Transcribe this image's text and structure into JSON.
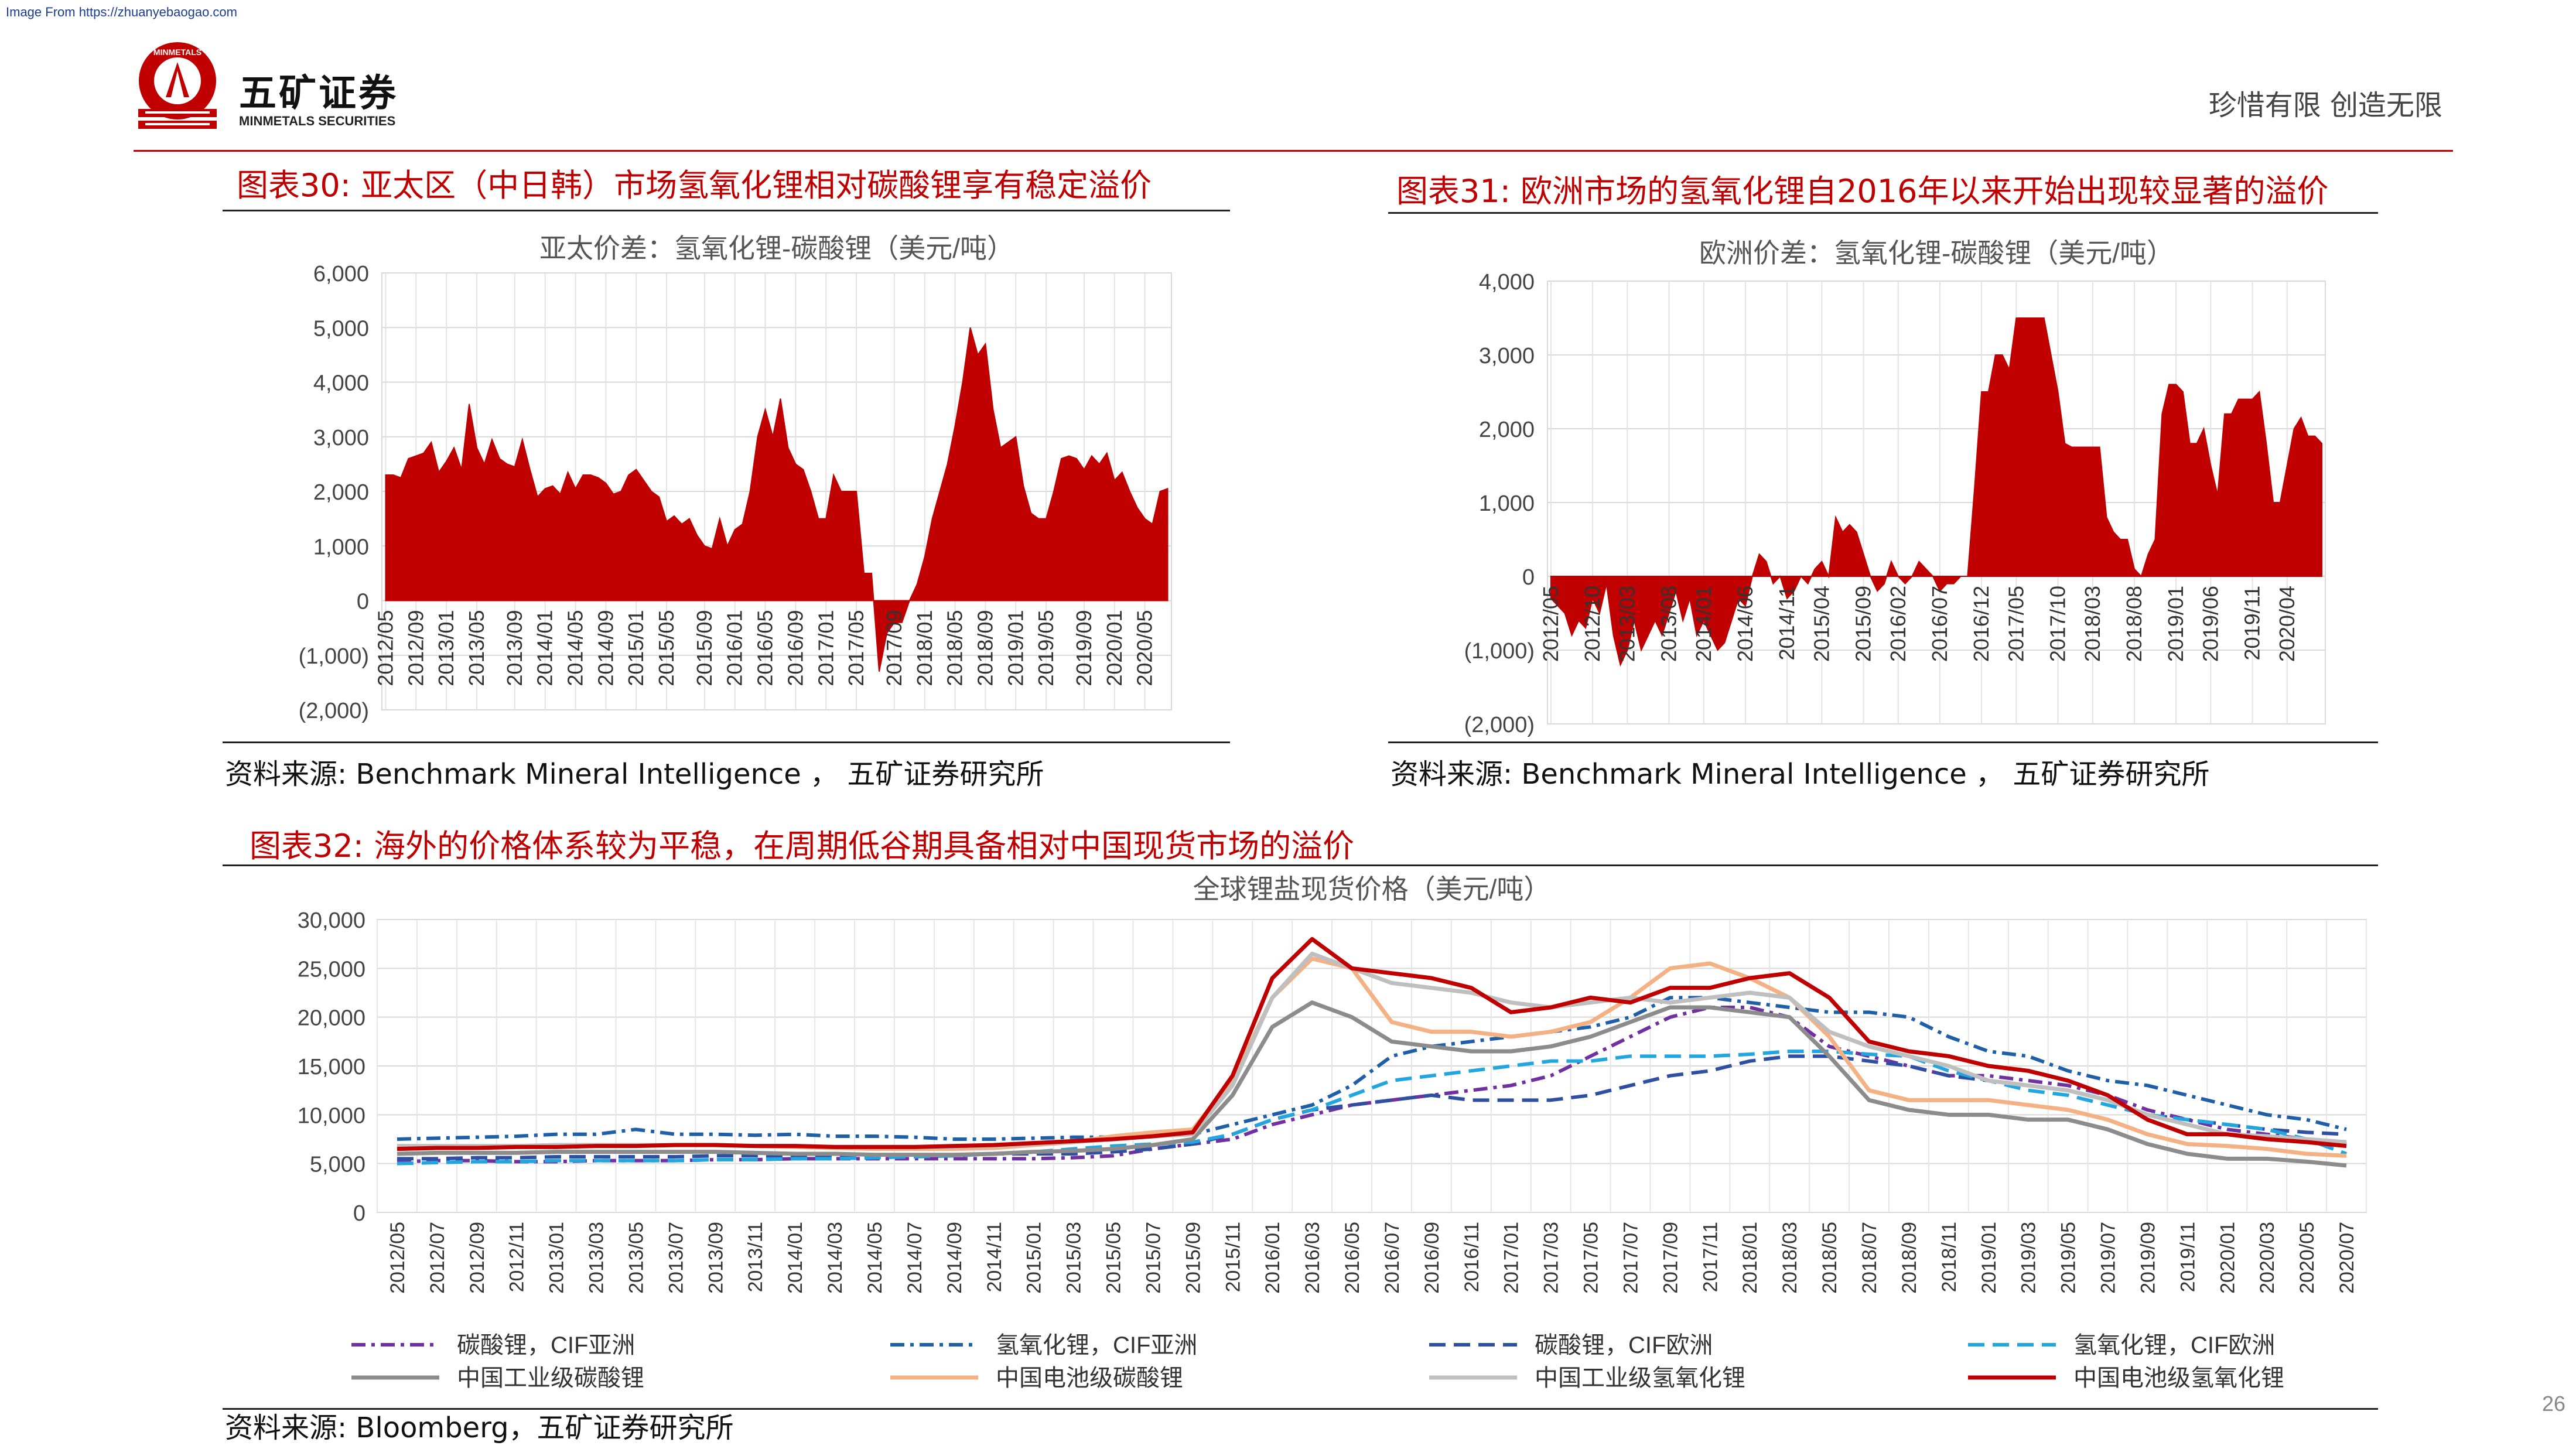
{
  "header": {
    "source_note": "Image From https://zhuanyebaogao.com",
    "company_cn": "五矿证券",
    "company_en": "MINMETALS SECURITIES",
    "logo_text": "MINMETALS",
    "slogan": "珍惜有限 创造无限",
    "accent_color": "#c00000"
  },
  "page_number": "26",
  "figures": {
    "fig30": {
      "title": "图表30: 亚太区（中日韩）市场氢氧化锂相对碳酸锂享有稳定溢价",
      "source": "资料来源: Benchmark Mineral Intelligence ， 五矿证券研究所"
    },
    "fig31": {
      "title": "图表31: 欧洲市场的氢氧化锂自2016年以来开始出现较显著的溢价",
      "source": "资料来源: Benchmark Mineral Intelligence ， 五矿证券研究所"
    },
    "fig32": {
      "title": "图表32: 海外的价格体系较为平稳，在周期低谷期具备相对中国现货市场的溢价",
      "source": "资料来源: Bloomberg，五矿证券研究所"
    }
  },
  "chart_data": [
    {
      "id": "fig30",
      "type": "area",
      "title": "亚太价差：氢氧化锂-碳酸锂（美元/吨）",
      "color": "#c00000",
      "ylim": [
        -2000,
        6000
      ],
      "yticks": [
        "6,000",
        "5,000",
        "4,000",
        "3,000",
        "2,000",
        "1,000",
        "0",
        "(1,000)",
        "(2,000)"
      ],
      "yticks_values": [
        6000,
        5000,
        4000,
        3000,
        2000,
        1000,
        0,
        -1000,
        -2000
      ],
      "xticks": [
        "2012/05",
        "2012/09",
        "2013/01",
        "2013/05",
        "2013/09",
        "2014/01",
        "2014/05",
        "2014/09",
        "2015/01",
        "2015/05",
        "2015/09",
        "2016/01",
        "2016/05",
        "2016/09",
        "2017/01",
        "2017/05",
        "2017/09",
        "2018/01",
        "2018/05",
        "2018/09",
        "2019/01",
        "2019/05",
        "2019/09",
        "2020/01",
        "2020/05"
      ],
      "grid": true,
      "values": [
        2300,
        2300,
        2250,
        2600,
        2650,
        2700,
        2900,
        2350,
        2550,
        2800,
        2400,
        3600,
        2800,
        2500,
        2950,
        2600,
        2500,
        2450,
        2950,
        2400,
        1900,
        2050,
        2100,
        1950,
        2350,
        2050,
        2300,
        2300,
        2250,
        2150,
        1950,
        2000,
        2300,
        2400,
        2200,
        2000,
        1900,
        1450,
        1550,
        1400,
        1500,
        1200,
        1000,
        950,
        1500,
        1000,
        1300,
        1400,
        2000,
        3000,
        3500,
        3000,
        3700,
        2800,
        2500,
        2400,
        2000,
        1500,
        1500,
        2300,
        2000,
        2000,
        2000,
        500,
        500,
        -1300,
        -600,
        -400,
        -400,
        0,
        300,
        800,
        1500,
        2000,
        2500,
        3200,
        4000,
        5000,
        4500,
        4700,
        3500,
        2800,
        2900,
        3000,
        2100,
        1600,
        1500,
        1500,
        2000,
        2600,
        2650,
        2600,
        2400,
        2650,
        2500,
        2700,
        2200,
        2350,
        2000,
        1700,
        1500,
        1400,
        2000,
        2050
      ]
    },
    {
      "id": "fig31",
      "type": "area",
      "title": "欧洲价差：氢氧化锂-碳酸锂（美元/吨）",
      "color": "#c00000",
      "ylim": [
        -2000,
        4000
      ],
      "yticks": [
        "4,000",
        "3,000",
        "2,000",
        "1,000",
        "0",
        "(1,000)",
        "(2,000)"
      ],
      "yticks_values": [
        4000,
        3000,
        2000,
        1000,
        0,
        -1000,
        -2000
      ],
      "xticks": [
        "2012/05",
        "2012/10",
        "2013/03",
        "2013/08",
        "2014/01",
        "2014/06",
        "2014/11",
        "2015/04",
        "2015/09",
        "2016/02",
        "2016/07",
        "2016/12",
        "2017/05",
        "2017/10",
        "2018/03",
        "2018/08",
        "2019/01",
        "2019/06",
        "2019/11",
        "2020/04"
      ],
      "grid": true,
      "values": [
        -300,
        -400,
        -500,
        -800,
        -600,
        -700,
        -300,
        -500,
        -100,
        -800,
        -1200,
        -1000,
        -600,
        -1000,
        -800,
        -600,
        -800,
        -500,
        -200,
        -600,
        -300,
        -800,
        -600,
        -800,
        -1000,
        -900,
        -600,
        -300,
        -400,
        0,
        300,
        200,
        -100,
        0,
        -300,
        -200,
        0,
        -100,
        100,
        200,
        0,
        800,
        600,
        700,
        600,
        300,
        0,
        -200,
        -100,
        200,
        0,
        -100,
        0,
        200,
        100,
        0,
        -200,
        -100,
        -100,
        0,
        0,
        1200,
        2500,
        2500,
        3000,
        3000,
        2800,
        3500,
        3500,
        3500,
        3500,
        3500,
        3000,
        2500,
        1800,
        1750,
        1750,
        1750,
        1750,
        1750,
        800,
        600,
        500,
        500,
        100,
        0,
        300,
        500,
        2200,
        2600,
        2600,
        2500,
        1800,
        1800,
        2000,
        1500,
        1100,
        2200,
        2200,
        2400,
        2400,
        2400,
        2500,
        1800,
        1000,
        1000,
        1500,
        2000,
        2150,
        1900,
        1900,
        1800
      ]
    },
    {
      "id": "fig32",
      "type": "line",
      "title": "全球锂盐现货价格（美元/吨）",
      "ylim": [
        0,
        30000
      ],
      "yticks": [
        "30,000",
        "25,000",
        "20,000",
        "15,000",
        "10,000",
        "5,000",
        "0"
      ],
      "yticks_values": [
        30000,
        25000,
        20000,
        15000,
        10000,
        5000,
        0
      ],
      "xticks": [
        "2012/05",
        "2012/07",
        "2012/09",
        "2012/11",
        "2013/01",
        "2013/03",
        "2013/05",
        "2013/07",
        "2013/09",
        "2013/11",
        "2014/01",
        "2014/03",
        "2014/05",
        "2014/07",
        "2014/09",
        "2014/11",
        "2015/01",
        "2015/03",
        "2015/05",
        "2015/07",
        "2015/09",
        "2015/11",
        "2016/01",
        "2016/03",
        "2016/05",
        "2016/07",
        "2016/09",
        "2016/11",
        "2017/01",
        "2017/03",
        "2017/05",
        "2017/07",
        "2017/09",
        "2017/11",
        "2018/01",
        "2018/03",
        "2018/05",
        "2018/07",
        "2018/09",
        "2018/11",
        "2019/01",
        "2019/03",
        "2019/05",
        "2019/07",
        "2019/09",
        "2019/11",
        "2020/01",
        "2020/03",
        "2020/05",
        "2020/07"
      ],
      "grid": true,
      "legend_position": "bottom",
      "series": [
        {
          "name": "碳酸锂，CIF亚洲",
          "color": "#7030a0",
          "dash": "dashdot",
          "values": [
            5200,
            5300,
            5300,
            5200,
            5200,
            5300,
            5300,
            5300,
            5400,
            5400,
            5500,
            5500,
            5500,
            5500,
            5500,
            5500,
            5500,
            5600,
            5800,
            6500,
            7000,
            7500,
            9000,
            10000,
            11000,
            11500,
            12000,
            12500,
            13000,
            14000,
            16000,
            18000,
            20000,
            21000,
            21000,
            20000,
            17000,
            16000,
            15000,
            14000,
            14000,
            13500,
            13000,
            12000,
            10500,
            9500,
            8500,
            8000,
            7500,
            7000
          ]
        },
        {
          "name": "氢氧化锂，CIF亚洲",
          "color": "#1f5fa8",
          "dash": "dashdot",
          "values": [
            7500,
            7600,
            7700,
            7800,
            8000,
            8000,
            8500,
            8000,
            8000,
            7900,
            8000,
            7800,
            7800,
            7700,
            7500,
            7500,
            7600,
            7700,
            7700,
            7800,
            8000,
            9000,
            10000,
            11000,
            13000,
            16000,
            17000,
            17500,
            18000,
            18500,
            19000,
            20000,
            22000,
            22000,
            21500,
            21000,
            20500,
            20500,
            20000,
            18000,
            16500,
            16000,
            14500,
            13500,
            13000,
            12000,
            11000,
            10000,
            9500,
            8500
          ]
        },
        {
          "name": "碳酸锂，CIF欧洲",
          "color": "#2e4fa2",
          "dash": "dash",
          "values": [
            5500,
            5500,
            5600,
            5600,
            5700,
            5700,
            5700,
            5700,
            5800,
            5800,
            5800,
            5800,
            5900,
            5900,
            5900,
            6000,
            6000,
            6000,
            6200,
            6500,
            7000,
            8000,
            9500,
            10500,
            11000,
            11500,
            12000,
            11500,
            11500,
            11500,
            12000,
            13000,
            14000,
            14500,
            15500,
            16000,
            16000,
            15500,
            15000,
            14000,
            13500,
            13000,
            12500,
            11500,
            10000,
            9500,
            9000,
            8500,
            8200,
            8000
          ]
        },
        {
          "name": "氢氧化锂，CIF欧洲",
          "color": "#22a6e0",
          "dash": "dash",
          "values": [
            5000,
            5100,
            5200,
            5200,
            5300,
            5300,
            5300,
            5300,
            5400,
            5400,
            5500,
            5500,
            5600,
            5700,
            5800,
            6000,
            6200,
            6500,
            6800,
            7000,
            7200,
            8000,
            9500,
            10500,
            12000,
            13500,
            14000,
            14500,
            15000,
            15500,
            15500,
            16000,
            16000,
            16000,
            16200,
            16500,
            16500,
            16200,
            16000,
            14500,
            13500,
            12500,
            12000,
            11000,
            10000,
            9500,
            9000,
            8500,
            7500,
            6000
          ]
        },
        {
          "name": "中国工业级碳酸锂",
          "color": "#8c8c8c",
          "dash": "solid",
          "values": [
            6000,
            6100,
            6100,
            6100,
            6200,
            6200,
            6200,
            6200,
            6200,
            6100,
            6000,
            6000,
            5900,
            5900,
            5900,
            6000,
            6200,
            6300,
            6500,
            6900,
            7500,
            12000,
            19000,
            21500,
            20000,
            17500,
            17000,
            16500,
            16500,
            17000,
            18000,
            19500,
            21000,
            21000,
            20500,
            20000,
            16000,
            11500,
            10500,
            10000,
            10000,
            9500,
            9500,
            8500,
            7000,
            6000,
            5500,
            5500,
            5200,
            4800
          ]
        },
        {
          "name": "中国电池级碳酸锂",
          "color": "#f4b183",
          "dash": "solid",
          "values": [
            6500,
            6600,
            6700,
            6700,
            6800,
            6800,
            6900,
            6900,
            6900,
            6800,
            6700,
            6600,
            6500,
            6500,
            6500,
            6600,
            6900,
            7200,
            7800,
            8200,
            8500,
            13500,
            22000,
            26000,
            25000,
            19500,
            18500,
            18500,
            18000,
            18500,
            19500,
            22000,
            25000,
            25500,
            24000,
            22000,
            18000,
            12500,
            11500,
            11500,
            11500,
            11000,
            10500,
            9500,
            8000,
            7000,
            6800,
            6500,
            6000,
            5800
          ]
        },
        {
          "name": "中国工业级氢氧化锂",
          "color": "#bfbfbf",
          "dash": "solid",
          "values": [
            6800,
            6800,
            6800,
            6800,
            6900,
            6900,
            6900,
            6900,
            6900,
            6800,
            6800,
            6700,
            6700,
            6700,
            6700,
            6800,
            7000,
            7200,
            7500,
            7800,
            8000,
            13000,
            22000,
            26500,
            25000,
            23500,
            23000,
            22500,
            21500,
            21000,
            21500,
            22000,
            21500,
            22000,
            22500,
            22000,
            18500,
            17000,
            16000,
            15000,
            13500,
            13000,
            12500,
            11500,
            10000,
            9000,
            8000,
            7800,
            7500,
            7200
          ]
        },
        {
          "name": "中国电池级氢氧化锂",
          "color": "#c00000",
          "dash": "solid",
          "values": [
            6500,
            6600,
            6600,
            6700,
            6700,
            6800,
            6800,
            6900,
            6900,
            6800,
            6800,
            6700,
            6700,
            6700,
            6800,
            6900,
            7100,
            7300,
            7500,
            7800,
            8200,
            14000,
            24000,
            28000,
            25000,
            24500,
            24000,
            23000,
            20500,
            21000,
            22000,
            21500,
            23000,
            23000,
            24000,
            24500,
            22000,
            17500,
            16500,
            16000,
            15000,
            14500,
            13500,
            12000,
            9500,
            8000,
            8000,
            7500,
            7200,
            6800
          ]
        }
      ]
    }
  ]
}
